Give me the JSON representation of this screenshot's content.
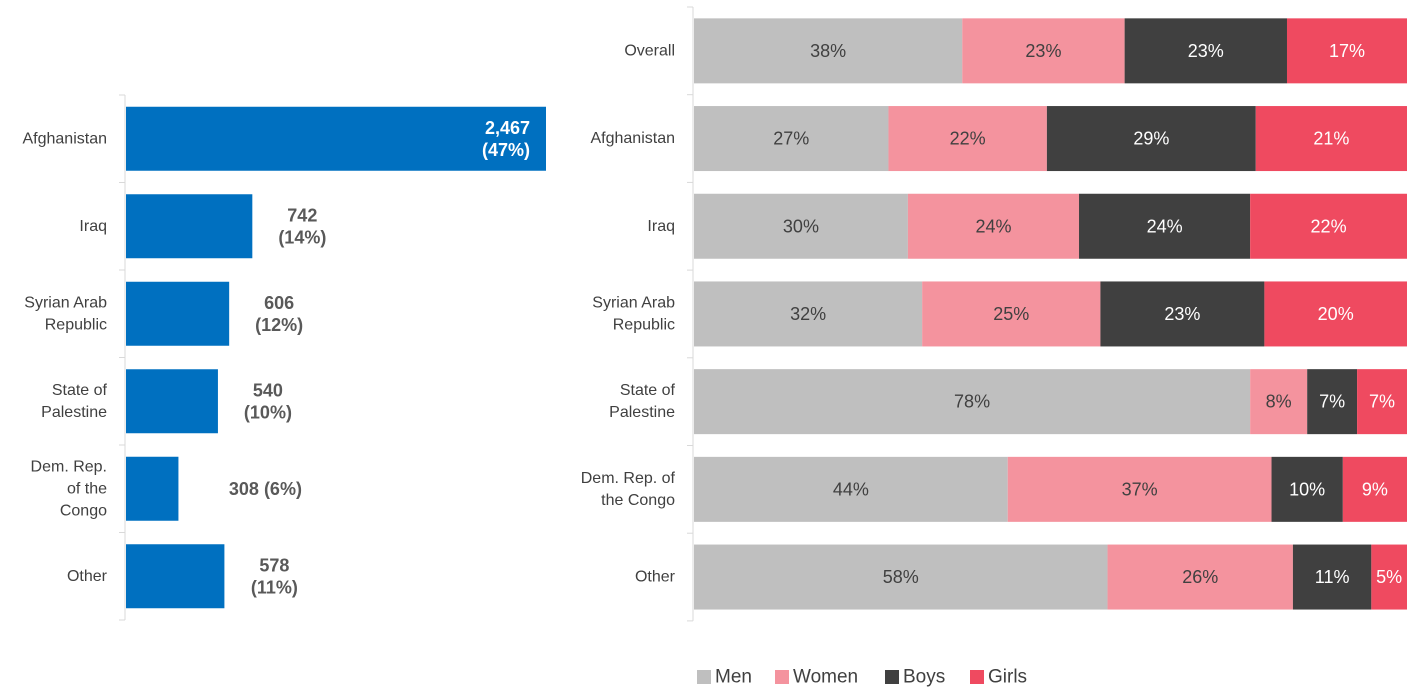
{
  "chart_data": [
    {
      "type": "bar",
      "orientation": "horizontal",
      "categories": [
        [
          "Afghanistan"
        ],
        [
          "Iraq"
        ],
        [
          "Syrian Arab",
          "Republic"
        ],
        [
          "State of",
          "Palestine"
        ],
        [
          "Dem. Rep.",
          "of the",
          "Congo"
        ],
        [
          "Other"
        ]
      ],
      "values": [
        2467,
        742,
        606,
        540,
        308,
        578
      ],
      "value_labels": [
        [
          "2,467",
          "(47%)"
        ],
        [
          "742",
          "(14%)"
        ],
        [
          "606",
          "(12%)"
        ],
        [
          "540",
          "(10%)"
        ],
        [
          "308  (6%)"
        ],
        [
          "578",
          "(11%)"
        ]
      ],
      "label_inside": [
        true,
        false,
        false,
        false,
        false,
        false
      ],
      "color": "#0070C0",
      "xlim": [
        0,
        2467
      ],
      "grid": false
    },
    {
      "type": "bar",
      "orientation": "horizontal",
      "stacked": true,
      "normalized": true,
      "categories": [
        [
          "Overall"
        ],
        [
          "Afghanistan"
        ],
        [
          "Iraq"
        ],
        [
          "Syrian Arab",
          "Republic"
        ],
        [
          "State of",
          "Palestine"
        ],
        [
          "Dem. Rep. of",
          "the Congo"
        ],
        [
          "Other"
        ]
      ],
      "series": [
        {
          "name": "Men",
          "color": "#BFBFBF",
          "text_color": "#404040",
          "values": [
            38,
            27,
            30,
            32,
            78,
            44,
            58
          ]
        },
        {
          "name": "Women",
          "color": "#F4939E",
          "text_color": "#404040",
          "values": [
            23,
            22,
            24,
            25,
            8,
            37,
            26
          ]
        },
        {
          "name": "Boys",
          "color": "#404040",
          "text_color": "#FFFFFF",
          "values": [
            23,
            29,
            24,
            23,
            7,
            10,
            11
          ]
        },
        {
          "name": "Girls",
          "color": "#EF4A60",
          "text_color": "#FFFFFF",
          "values": [
            17,
            21,
            22,
            20,
            7,
            9,
            5
          ]
        }
      ],
      "value_suffix": "%",
      "legend": "bottom",
      "grid": false
    }
  ]
}
